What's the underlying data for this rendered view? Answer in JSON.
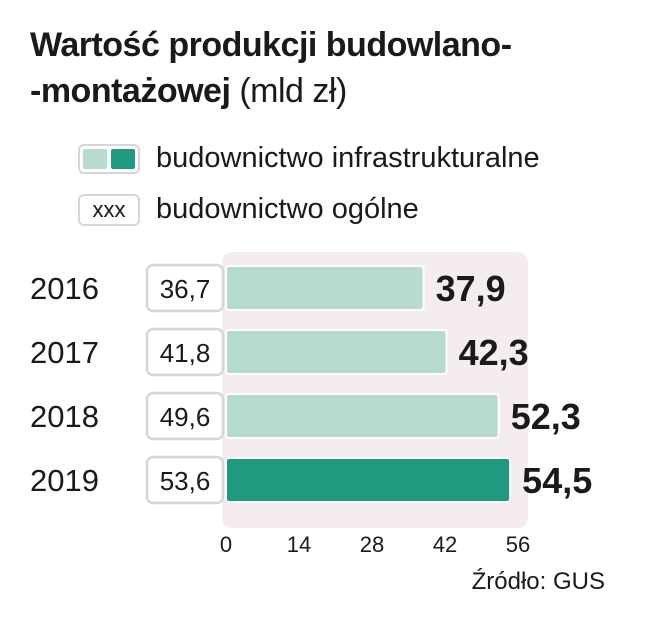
{
  "title": {
    "line1": "Wartość produkcji budowlano-",
    "line2": "-montażowej",
    "unit": "(mld zł)"
  },
  "legend": {
    "infra_label": "budownictwo infrastrukturalne",
    "general_box": "xxx",
    "general_label": "budownictwo ogólne"
  },
  "colors": {
    "bar_light": "#b7dccf",
    "bar_dark": "#1f9a80",
    "panel_bg": "#f5ecee",
    "box_border": "#d6d6d6"
  },
  "chart_data": {
    "type": "bar",
    "orientation": "horizontal",
    "categories": [
      "2016",
      "2017",
      "2018",
      "2019"
    ],
    "series": [
      {
        "name": "budownictwo infrastrukturalne",
        "values": [
          37.9,
          42.3,
          52.3,
          54.5
        ]
      },
      {
        "name": "budownictwo ogólne",
        "values": [
          36.7,
          41.8,
          49.6,
          53.6
        ]
      }
    ],
    "bar_labels": [
      "37,9",
      "42,3",
      "52,3",
      "54,5"
    ],
    "box_labels": [
      "36,7",
      "41,8",
      "49,6",
      "53,6"
    ],
    "highlight_index": 3,
    "xlim": [
      0,
      56
    ],
    "xticks": [
      0,
      14,
      28,
      42,
      56
    ],
    "xtick_labels": [
      "0",
      "14",
      "28",
      "42",
      "56"
    ]
  },
  "source": "Źródło: GUS"
}
